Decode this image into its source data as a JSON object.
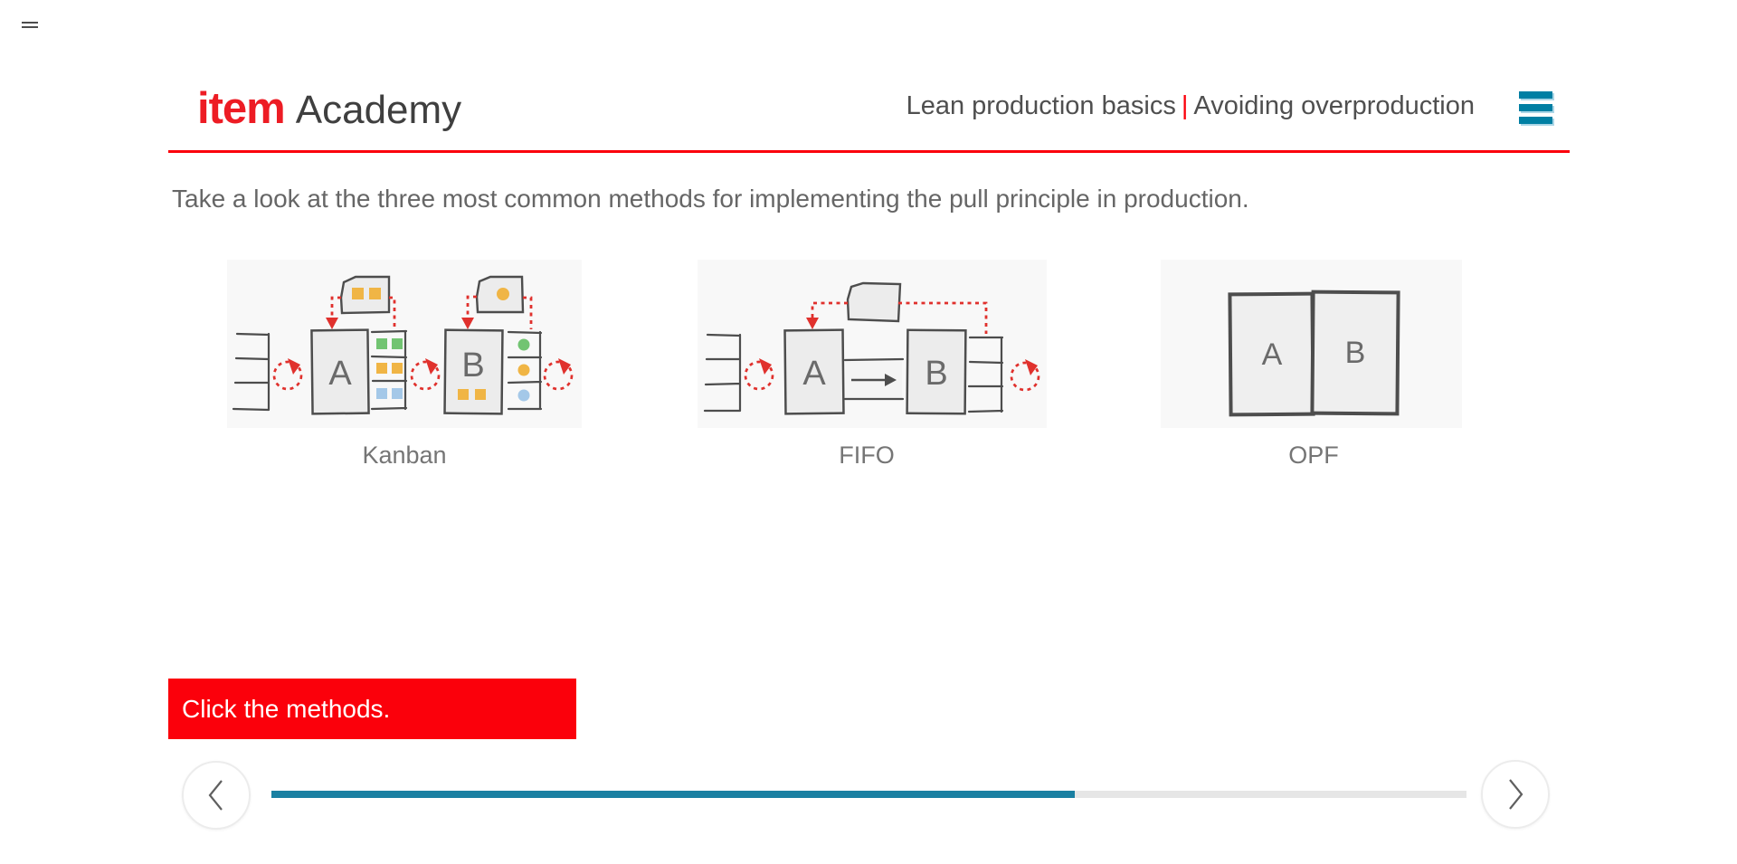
{
  "window": {
    "menu_icon": "hamburger"
  },
  "header": {
    "logo_primary": "item",
    "logo_secondary": "Academy",
    "course_title": "Lean production basics",
    "separator": "|",
    "lesson_title": "Avoiding overproduction"
  },
  "content": {
    "instruction": "Take a look at the three most common methods for implementing the pull principle in production.",
    "letters": {
      "a": "A",
      "b": "B"
    },
    "methods": [
      {
        "label": "Kanban"
      },
      {
        "label": "FIFO"
      },
      {
        "label": "OPF"
      }
    ],
    "prompt": "Click the methods."
  },
  "footer": {
    "progress_percent": 67.2
  },
  "colors": {
    "brand_red": "#ed1c24",
    "ui_red": "#fb000b",
    "menu_teal": "#007fa3",
    "progress_fill": "#1a80a2",
    "progress_track": "#e6e6e6",
    "diagram_red": "#e0312d",
    "diagram_stroke": "#4d4d4d",
    "kanban_yellow": "#f0b545",
    "kanban_green": "#72c472",
    "kanban_blue": "#a4c8e8"
  }
}
